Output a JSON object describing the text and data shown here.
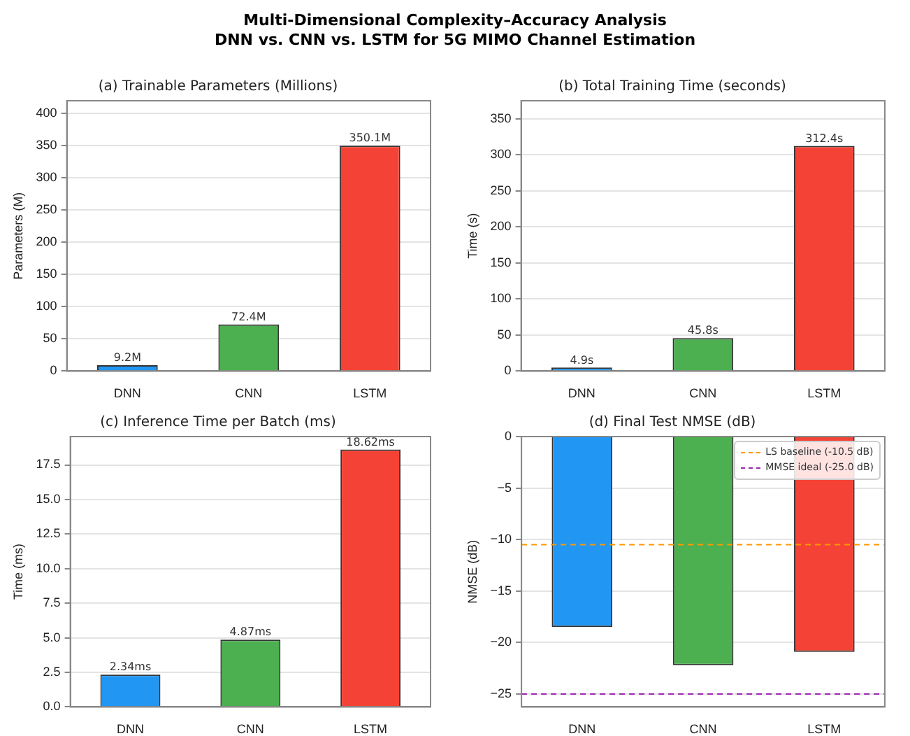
{
  "chart_data": [
    {
      "type": "other",
      "title": "Multi-Dimensional Complexity–Accuracy Analysis",
      "subtitle": "DNN vs. CNN vs. LSTM for 5G MIMO Channel Estimation"
    },
    {
      "type": "bar",
      "title": "(a) Trainable Parameters (Millions)",
      "ylabel": "Parameters (M)",
      "categories": [
        "DNN",
        "CNN",
        "LSTM"
      ],
      "values": [
        9.2,
        72.4,
        350.1
      ],
      "colors": [
        "#2196f3",
        "#4caf50",
        "#f44336"
      ],
      "value_labels": [
        "9.2M",
        "72.4M",
        "350.1M"
      ],
      "ylim": [
        0,
        420
      ],
      "yticks": [
        0,
        50,
        100,
        150,
        200,
        250,
        300,
        350,
        400
      ],
      "grid": "y"
    },
    {
      "type": "bar",
      "title": "(b) Total Training Time (seconds)",
      "ylabel": "Time (s)",
      "categories": [
        "DNN",
        "CNN",
        "LSTM"
      ],
      "values": [
        4.9,
        45.8,
        312.4
      ],
      "colors": [
        "#2196f3",
        "#4caf50",
        "#f44336"
      ],
      "value_labels": [
        "4.9s",
        "45.8s",
        "312.4s"
      ],
      "ylim": [
        0,
        375
      ],
      "yticks": [
        0,
        50,
        100,
        150,
        200,
        250,
        300,
        350
      ],
      "grid": "y"
    },
    {
      "type": "bar",
      "title": "(c) Inference Time per Batch (ms)",
      "ylabel": "Time (ms)",
      "categories": [
        "DNN",
        "CNN",
        "LSTM"
      ],
      "values": [
        2.34,
        4.87,
        18.62
      ],
      "colors": [
        "#2196f3",
        "#4caf50",
        "#f44336"
      ],
      "value_labels": [
        "2.34ms",
        "4.87ms",
        "18.62ms"
      ],
      "ylim": [
        0,
        19.55
      ],
      "yticks": [
        {
          "value": 0,
          "label": "0.0"
        },
        {
          "value": 2.5,
          "label": "2.5"
        },
        {
          "value": 5,
          "label": "5.0"
        },
        {
          "value": 7.5,
          "label": "7.5"
        },
        {
          "value": 10,
          "label": "10.0"
        },
        {
          "value": 12.5,
          "label": "12.5"
        },
        {
          "value": 15,
          "label": "15.0"
        },
        {
          "value": 17.5,
          "label": "17.5"
        }
      ],
      "grid": "y"
    },
    {
      "type": "bar",
      "title": "(d) Final Test NMSE (dB)",
      "ylabel": "NMSE (dB)",
      "categories": [
        "DNN",
        "CNN",
        "LSTM"
      ],
      "values": [
        -18.5,
        -22.2,
        -20.9
      ],
      "colors": [
        "#2196f3",
        "#4caf50",
        "#f44336"
      ],
      "ylim": [
        -26.25,
        0
      ],
      "yticks": [
        {
          "value": -25,
          "label": "−25"
        },
        {
          "value": -20,
          "label": "−20"
        },
        {
          "value": -15,
          "label": "−15"
        },
        {
          "value": -10,
          "label": "−10"
        },
        {
          "value": -5,
          "label": "−5"
        },
        0
      ],
      "grid": "y",
      "legend": "top right",
      "ref_lines": [
        {
          "axis": "y",
          "value": -10.5,
          "label": "LS baseline (-10.5 dB)",
          "color": "#ff9800",
          "line_style": "dashed"
        },
        {
          "axis": "y",
          "value": -25,
          "label": "MMSE ideal (-25.0 dB)",
          "color": "#9c27b0",
          "line_style": "dashed"
        }
      ]
    }
  ]
}
